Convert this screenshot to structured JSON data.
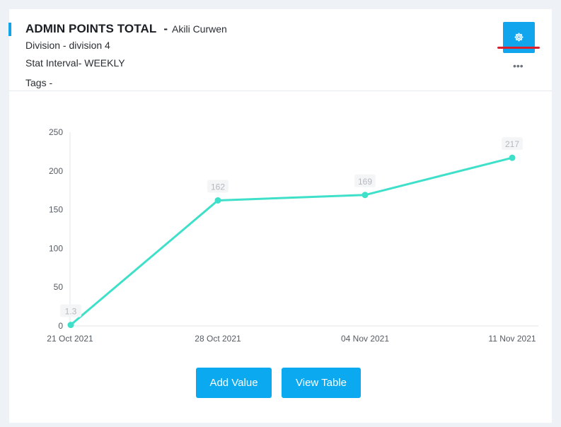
{
  "header": {
    "title": "ADMIN POINTS TOTAL",
    "separator": "-",
    "owner": "Akili Curwen",
    "division": "Division - division 4",
    "stat_interval": "Stat Interval- WEEKLY",
    "tags": "Tags -"
  },
  "icons": {
    "settings": "gear-icon",
    "more": "more-horizontal-icon"
  },
  "colors": {
    "accent": "#13a3e8",
    "button": "#0aa9f0",
    "line": "#3fe0c9",
    "marker": "#e01e2b"
  },
  "chart_data": {
    "type": "line",
    "categories": [
      "21 Oct 2021",
      "28 Oct 2021",
      "04 Nov 2021",
      "11 Nov 2021"
    ],
    "values": [
      1.3,
      162,
      169,
      217
    ],
    "data_labels": [
      "1.3",
      "162",
      "169",
      "217"
    ],
    "yticks": [
      "0",
      "50",
      "100",
      "150",
      "200",
      "250"
    ],
    "ylim": [
      0,
      250
    ],
    "title": "",
    "xlabel": "",
    "ylabel": "",
    "grid": false
  },
  "actions": {
    "add_value": "Add Value",
    "view_table": "View Table"
  }
}
